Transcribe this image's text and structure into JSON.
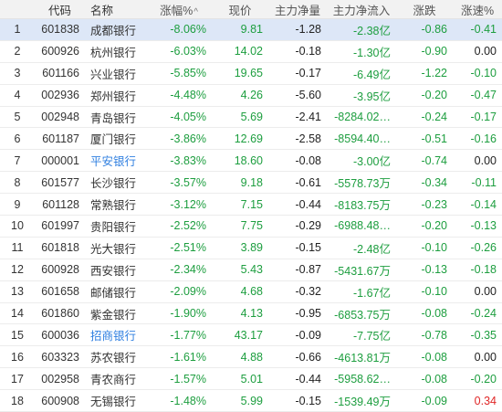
{
  "headers": {
    "index": "",
    "code": "代码",
    "name": "名称",
    "change_pct": "涨幅%",
    "price": "现价",
    "main_net": "主力净量",
    "main_inflow": "主力净流入",
    "change": "涨跌",
    "speed": "涨速%"
  },
  "colors": {
    "down": "#1d9e3f",
    "up": "#e02626",
    "link": "#2f7fe0",
    "selected_row": "#dde7f7"
  },
  "sort": {
    "column": "change_pct",
    "icon": "caret-up-icon",
    "glyph": "^"
  },
  "rows": [
    {
      "idx": "1",
      "code": "601838",
      "name": "成都银行",
      "change_pct": "-8.06%",
      "price": "9.81",
      "main_net": "-1.28",
      "main_inflow": "-2.38亿",
      "change": "-0.86",
      "speed": "-0.41",
      "speed_color": "green",
      "name_link": false,
      "selected": true
    },
    {
      "idx": "2",
      "code": "600926",
      "name": "杭州银行",
      "change_pct": "-6.03%",
      "price": "14.02",
      "main_net": "-0.18",
      "main_inflow": "-1.30亿",
      "change": "-0.90",
      "speed": "0.00",
      "speed_color": "black",
      "name_link": false,
      "selected": false
    },
    {
      "idx": "3",
      "code": "601166",
      "name": "兴业银行",
      "change_pct": "-5.85%",
      "price": "19.65",
      "main_net": "-0.17",
      "main_inflow": "-6.49亿",
      "change": "-1.22",
      "speed": "-0.10",
      "speed_color": "green",
      "name_link": false,
      "selected": false
    },
    {
      "idx": "4",
      "code": "002936",
      "name": "郑州银行",
      "change_pct": "-4.48%",
      "price": "4.26",
      "main_net": "-5.60",
      "main_inflow": "-3.95亿",
      "change": "-0.20",
      "speed": "-0.47",
      "speed_color": "green",
      "name_link": false,
      "selected": false
    },
    {
      "idx": "5",
      "code": "002948",
      "name": "青岛银行",
      "change_pct": "-4.05%",
      "price": "5.69",
      "main_net": "-2.41",
      "main_inflow": "-8284.02…",
      "change": "-0.24",
      "speed": "-0.17",
      "speed_color": "green",
      "name_link": false,
      "selected": false
    },
    {
      "idx": "6",
      "code": "601187",
      "name": "厦门银行",
      "change_pct": "-3.86%",
      "price": "12.69",
      "main_net": "-2.58",
      "main_inflow": "-8594.40…",
      "change": "-0.51",
      "speed": "-0.16",
      "speed_color": "green",
      "name_link": false,
      "selected": false
    },
    {
      "idx": "7",
      "code": "000001",
      "name": "平安银行",
      "change_pct": "-3.83%",
      "price": "18.60",
      "main_net": "-0.08",
      "main_inflow": "-3.00亿",
      "change": "-0.74",
      "speed": "0.00",
      "speed_color": "black",
      "name_link": true,
      "selected": false
    },
    {
      "idx": "8",
      "code": "601577",
      "name": "长沙银行",
      "change_pct": "-3.57%",
      "price": "9.18",
      "main_net": "-0.61",
      "main_inflow": "-5578.73万",
      "change": "-0.34",
      "speed": "-0.11",
      "speed_color": "green",
      "name_link": false,
      "selected": false
    },
    {
      "idx": "9",
      "code": "601128",
      "name": "常熟银行",
      "change_pct": "-3.12%",
      "price": "7.15",
      "main_net": "-0.44",
      "main_inflow": "-8183.75万",
      "change": "-0.23",
      "speed": "-0.14",
      "speed_color": "green",
      "name_link": false,
      "selected": false
    },
    {
      "idx": "10",
      "code": "601997",
      "name": "贵阳银行",
      "change_pct": "-2.52%",
      "price": "7.75",
      "main_net": "-0.29",
      "main_inflow": "-6988.48…",
      "change": "-0.20",
      "speed": "-0.13",
      "speed_color": "green",
      "name_link": false,
      "selected": false
    },
    {
      "idx": "11",
      "code": "601818",
      "name": "光大银行",
      "change_pct": "-2.51%",
      "price": "3.89",
      "main_net": "-0.15",
      "main_inflow": "-2.48亿",
      "change": "-0.10",
      "speed": "-0.26",
      "speed_color": "green",
      "name_link": false,
      "selected": false
    },
    {
      "idx": "12",
      "code": "600928",
      "name": "西安银行",
      "change_pct": "-2.34%",
      "price": "5.43",
      "main_net": "-0.87",
      "main_inflow": "-5431.67万",
      "change": "-0.13",
      "speed": "-0.18",
      "speed_color": "green",
      "name_link": false,
      "selected": false
    },
    {
      "idx": "13",
      "code": "601658",
      "name": "邮储银行",
      "change_pct": "-2.09%",
      "price": "4.68",
      "main_net": "-0.32",
      "main_inflow": "-1.67亿",
      "change": "-0.10",
      "speed": "0.00",
      "speed_color": "black",
      "name_link": false,
      "selected": false
    },
    {
      "idx": "14",
      "code": "601860",
      "name": "紫金银行",
      "change_pct": "-1.90%",
      "price": "4.13",
      "main_net": "-0.95",
      "main_inflow": "-6853.75万",
      "change": "-0.08",
      "speed": "-0.24",
      "speed_color": "green",
      "name_link": false,
      "selected": false
    },
    {
      "idx": "15",
      "code": "600036",
      "name": "招商银行",
      "change_pct": "-1.77%",
      "price": "43.17",
      "main_net": "-0.09",
      "main_inflow": "-7.75亿",
      "change": "-0.78",
      "speed": "-0.35",
      "speed_color": "green",
      "name_link": true,
      "selected": false
    },
    {
      "idx": "16",
      "code": "603323",
      "name": "苏农银行",
      "change_pct": "-1.61%",
      "price": "4.88",
      "main_net": "-0.66",
      "main_inflow": "-4613.81万",
      "change": "-0.08",
      "speed": "0.00",
      "speed_color": "black",
      "name_link": false,
      "selected": false
    },
    {
      "idx": "17",
      "code": "002958",
      "name": "青农商行",
      "change_pct": "-1.57%",
      "price": "5.01",
      "main_net": "-0.44",
      "main_inflow": "-5958.62…",
      "change": "-0.08",
      "speed": "-0.20",
      "speed_color": "green",
      "name_link": false,
      "selected": false
    },
    {
      "idx": "18",
      "code": "600908",
      "name": "无锡银行",
      "change_pct": "-1.48%",
      "price": "5.99",
      "main_net": "-0.15",
      "main_inflow": "-1539.49万",
      "change": "-0.09",
      "speed": "0.34",
      "speed_color": "red",
      "name_link": false,
      "selected": false
    }
  ]
}
